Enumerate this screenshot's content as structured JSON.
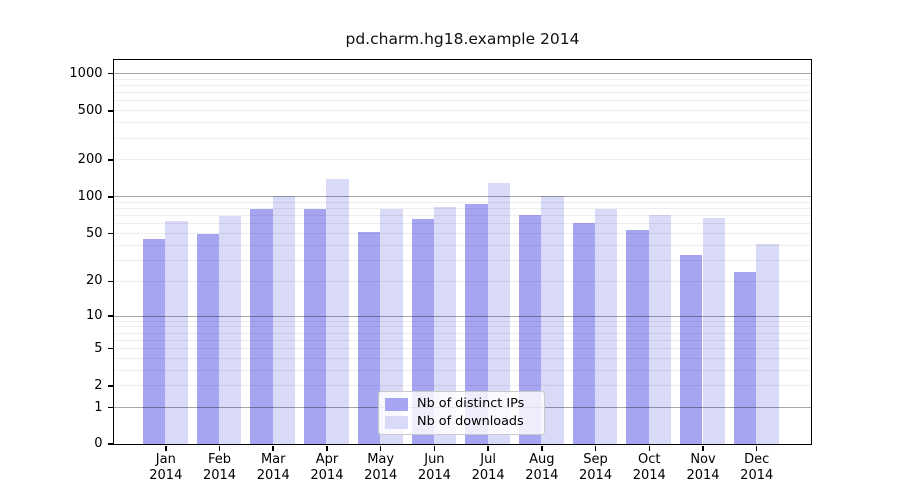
{
  "title": "pd.charm.hg18.example 2014",
  "colors": {
    "distinct_ips": "#a5a5f1",
    "downloads": "#d9d9f8",
    "major_grid": "#a0a0a0",
    "minor_grid": "#ececec",
    "axis": "#000000"
  },
  "legend": {
    "items": [
      {
        "label": "Nb of distinct IPs",
        "color": "#a5a5f1"
      },
      {
        "label": "Nb of downloads",
        "color": "#d9d9f8"
      }
    ]
  },
  "y_axis": {
    "tick_values": [
      0,
      1,
      2,
      5,
      10,
      20,
      50,
      100,
      200,
      500,
      1000
    ],
    "tick_labels": [
      "0",
      "1",
      "2",
      "5",
      "10",
      "20",
      "50",
      "100",
      "200",
      "500",
      "1000"
    ],
    "scale": "log1p"
  },
  "x_axis": {
    "months": [
      "Jan",
      "Feb",
      "Mar",
      "Apr",
      "May",
      "Jun",
      "Jul",
      "Aug",
      "Sep",
      "Oct",
      "Nov",
      "Dec"
    ],
    "year": "2014"
  },
  "chart_data": {
    "type": "bar",
    "title": "pd.charm.hg18.example 2014",
    "categories": [
      "Jan 2014",
      "Feb 2014",
      "Mar 2014",
      "Apr 2014",
      "May 2014",
      "Jun 2014",
      "Jul 2014",
      "Aug 2014",
      "Sep 2014",
      "Oct 2014",
      "Nov 2014",
      "Dec 2014"
    ],
    "series": [
      {
        "name": "Nb of distinct IPs",
        "color": "#a5a5f1",
        "values": [
          45,
          50,
          80,
          80,
          52,
          66,
          87,
          71,
          61,
          54,
          33,
          24
        ]
      },
      {
        "name": "Nb of downloads",
        "color": "#d9d9f8",
        "values": [
          64,
          70,
          101,
          140,
          79,
          82,
          130,
          101,
          80,
          71,
          67,
          41
        ]
      }
    ],
    "xlabel": "",
    "ylabel": "",
    "yscale": "log1p",
    "yticks": [
      0,
      1,
      2,
      5,
      10,
      20,
      50,
      100,
      200,
      500,
      1000
    ],
    "ylim": [
      0,
      1280
    ],
    "grid": "horizontal",
    "legend_position": "bottom-center"
  }
}
